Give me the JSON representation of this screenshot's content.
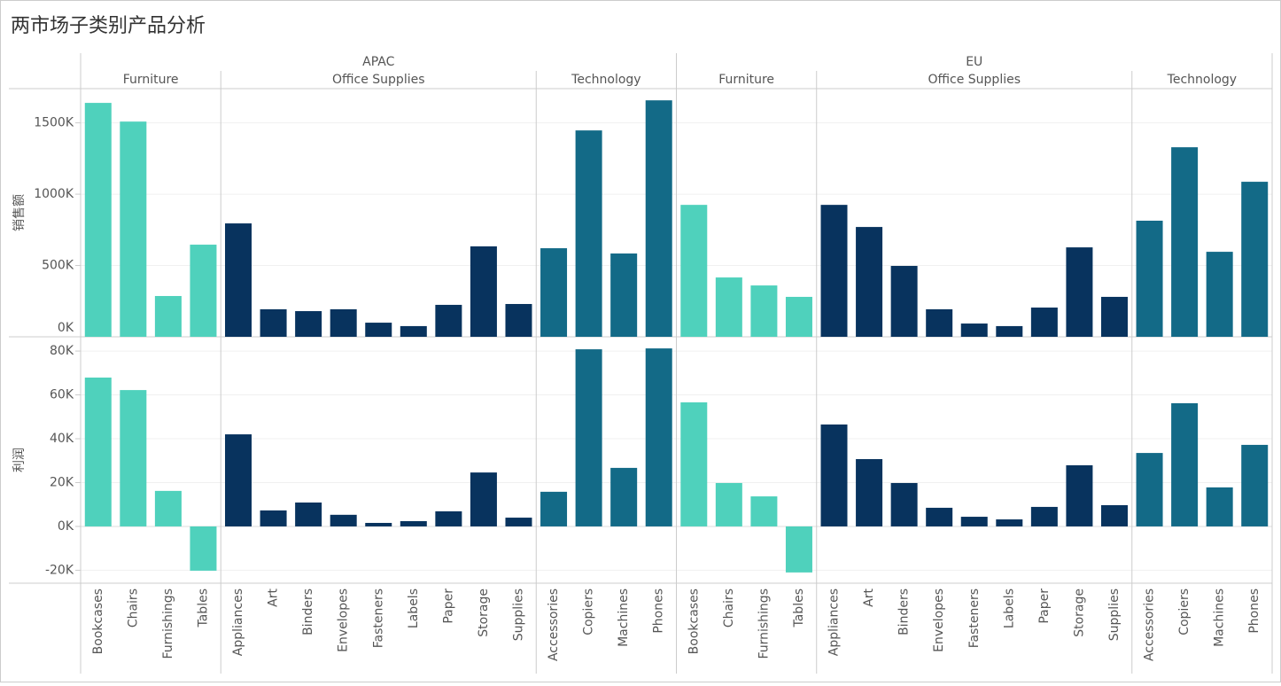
{
  "chart_data": {
    "type": "bar",
    "title": "两市场子类别产品分析",
    "y_axes": {
      "sales": {
        "label": "销售额",
        "ylim": [
          0,
          1740000
        ],
        "yticks": [
          {
            "value": 0,
            "label": "0K"
          },
          {
            "value": 500000,
            "label": "500K"
          },
          {
            "value": 1000000,
            "label": "1000K"
          },
          {
            "value": 1500000,
            "label": "1500K"
          }
        ]
      },
      "profit": {
        "label": "利润",
        "ylim": [
          -25900,
          86500
        ],
        "yticks": [
          {
            "value": -20000,
            "label": "-20K"
          },
          {
            "value": 0,
            "label": "0K"
          },
          {
            "value": 20000,
            "label": "20K"
          },
          {
            "value": 40000,
            "label": "40K"
          },
          {
            "value": 60000,
            "label": "60K"
          },
          {
            "value": 80000,
            "label": "80K"
          }
        ]
      }
    },
    "grid": true,
    "markets": [
      {
        "name": "APAC",
        "categories": [
          {
            "name": "Furniture",
            "color": "#4fd1bc",
            "subcategories": [
              "Bookcases",
              "Chairs",
              "Furnishings",
              "Tables"
            ],
            "sales": [
              1640000,
              1509000,
              286000,
              646000
            ],
            "profit": [
              67900,
              62200,
              16200,
              -20200
            ]
          },
          {
            "name": "Office Supplies",
            "color": "#08335e",
            "subcategories": [
              "Appliances",
              "Art",
              "Binders",
              "Envelopes",
              "Fasteners",
              "Labels",
              "Paper",
              "Storage",
              "Supplies"
            ],
            "sales": [
              795000,
              193000,
              180000,
              193000,
              99000,
              75000,
              224000,
              634000,
              230000
            ],
            "profit": [
              42000,
              7300,
              10900,
              5300,
              1600,
              2400,
              6900,
              24600,
              4000
            ]
          },
          {
            "name": "Technology",
            "color": "#136a87",
            "subcategories": [
              "Accessories",
              "Copiers",
              "Machines",
              "Phones"
            ],
            "sales": [
              621000,
              1447000,
              584000,
              1658000
            ],
            "profit": [
              15800,
              80800,
              26700,
              81200
            ]
          }
        ]
      },
      {
        "name": "EU",
        "categories": [
          {
            "name": "Furniture",
            "color": "#4fd1bc",
            "subcategories": [
              "Bookcases",
              "Chairs",
              "Furnishings",
              "Tables"
            ],
            "sales": [
              925000,
              416000,
              360000,
              280000
            ],
            "profit": [
              56600,
              19800,
              13700,
              -21000
            ]
          },
          {
            "name": "Office Supplies",
            "color": "#08335e",
            "subcategories": [
              "Appliances",
              "Art",
              "Binders",
              "Envelopes",
              "Fasteners",
              "Labels",
              "Paper",
              "Storage",
              "Supplies"
            ],
            "sales": [
              925000,
              770000,
              497000,
              193000,
              93000,
              75000,
              205000,
              627000,
              280000
            ],
            "profit": [
              46500,
              30700,
              19800,
              8500,
              4400,
              3200,
              8900,
              27900,
              9700
            ]
          },
          {
            "name": "Technology",
            "color": "#136a87",
            "subcategories": [
              "Accessories",
              "Copiers",
              "Machines",
              "Phones"
            ],
            "sales": [
              814000,
              1329000,
              596000,
              1087000
            ],
            "profit": [
              33500,
              56200,
              17800,
              37200
            ]
          }
        ]
      }
    ]
  }
}
